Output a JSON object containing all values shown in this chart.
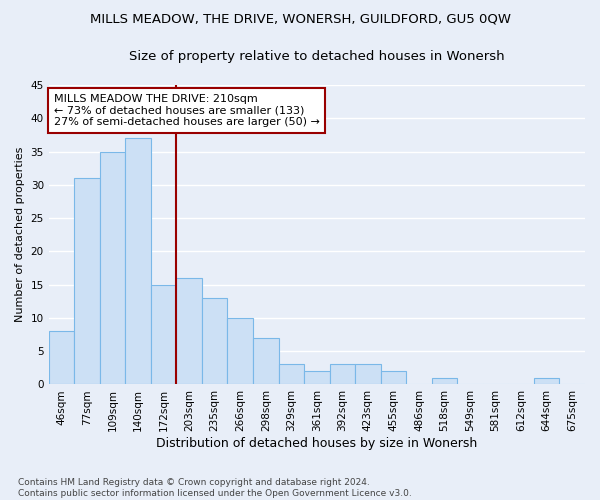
{
  "title": "MILLS MEADOW, THE DRIVE, WONERSH, GUILDFORD, GU5 0QW",
  "subtitle": "Size of property relative to detached houses in Wonersh",
  "xlabel": "Distribution of detached houses by size in Wonersh",
  "ylabel": "Number of detached properties",
  "bin_labels": [
    "46sqm",
    "77sqm",
    "109sqm",
    "140sqm",
    "172sqm",
    "203sqm",
    "235sqm",
    "266sqm",
    "298sqm",
    "329sqm",
    "361sqm",
    "392sqm",
    "423sqm",
    "455sqm",
    "486sqm",
    "518sqm",
    "549sqm",
    "581sqm",
    "612sqm",
    "644sqm",
    "675sqm"
  ],
  "bin_values": [
    8,
    31,
    35,
    37,
    15,
    16,
    13,
    10,
    7,
    3,
    2,
    3,
    3,
    2,
    0,
    1,
    0,
    0,
    0,
    1,
    0
  ],
  "bar_color": "#cce0f5",
  "bar_edge_color": "#7ab8e8",
  "vline_color": "#990000",
  "annotation_text": "MILLS MEADOW THE DRIVE: 210sqm\n← 73% of detached houses are smaller (133)\n27% of semi-detached houses are larger (50) →",
  "annotation_box_color": "#ffffff",
  "annotation_box_edge": "#990000",
  "ylim": [
    0,
    45
  ],
  "yticks": [
    0,
    5,
    10,
    15,
    20,
    25,
    30,
    35,
    40,
    45
  ],
  "footnote": "Contains HM Land Registry data © Crown copyright and database right 2024.\nContains public sector information licensed under the Open Government Licence v3.0.",
  "background_color": "#e8eef8",
  "grid_color": "#ffffff",
  "title_fontsize": 9.5,
  "subtitle_fontsize": 9.5,
  "xlabel_fontsize": 9,
  "ylabel_fontsize": 8,
  "tick_fontsize": 7.5,
  "footnote_fontsize": 6.5,
  "annotation_fontsize": 8
}
